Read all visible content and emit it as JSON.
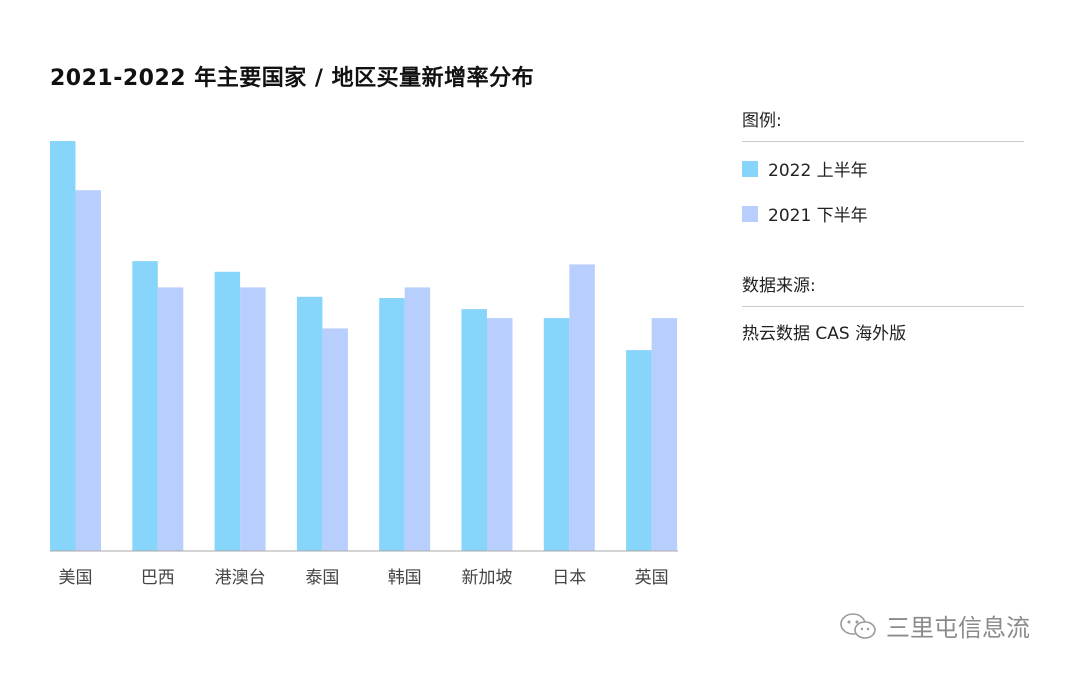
{
  "chart_data": {
    "type": "bar",
    "title": "2021-2022 年主要国家 / 地区买量新增率分布",
    "categories": [
      "美国",
      "巴西",
      "港澳台",
      "泰国",
      "韩国",
      "新加坡",
      "日本",
      "英国"
    ],
    "series": [
      {
        "name": "2022 上半年",
        "color": "#87d5fb",
        "values": [
          100,
          70.7,
          68.1,
          62.0,
          61.7,
          59.0,
          56.8,
          49.0
        ]
      },
      {
        "name": "2021 下半年",
        "color": "#b8cffd",
        "values": [
          88.0,
          64.3,
          64.3,
          54.3,
          64.3,
          56.8,
          69.9,
          56.8
        ]
      }
    ],
    "ylim": [
      0,
      100
    ],
    "axis_labels_visible": false,
    "grid": false,
    "legend_position": "right"
  },
  "legend": {
    "heading": "图例:"
  },
  "source": {
    "heading": "数据来源:",
    "text": "热云数据 CAS 海外版"
  },
  "watermark": {
    "text": "三里屯信息流",
    "icon": "wechat-icon"
  }
}
